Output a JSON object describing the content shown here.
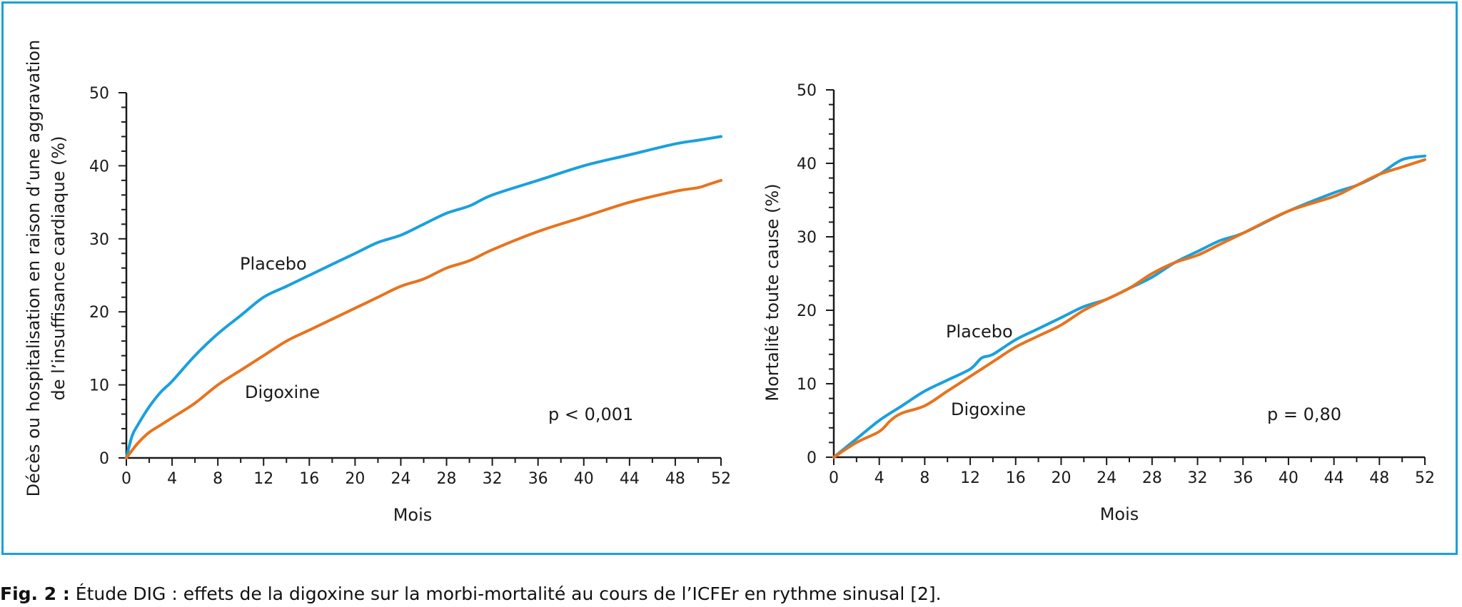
{
  "colors": {
    "frame": "#1aa0dd",
    "placebo": "#1aa0dd",
    "digoxine": "#e8731c"
  },
  "caption": {
    "label": "Fig. 2 :",
    "text": " Étude DIG : effets de la digoxine sur la morbi-mortalité au cours de l’ICFEr en rythme sinusal [2]."
  },
  "chart_data": [
    {
      "type": "line",
      "ylabel_line1": "Décès ou hospitalisation en raison d’une aggravation",
      "ylabel_line2": "de l’insuffisance cardiaque (%)",
      "xlabel": "Mois",
      "xlim": [
        0,
        52
      ],
      "ylim": [
        0,
        50
      ],
      "xticks": [
        0,
        4,
        8,
        12,
        16,
        20,
        24,
        28,
        32,
        36,
        40,
        44,
        48,
        52
      ],
      "yticks": [
        0,
        10,
        20,
        30,
        40,
        50
      ],
      "series": [
        {
          "name": "Placebo",
          "color": "#1aa0dd",
          "x": [
            0,
            0.5,
            1,
            2,
            3,
            4,
            6,
            8,
            10,
            12,
            14,
            16,
            18,
            20,
            22,
            24,
            26,
            28,
            30,
            32,
            36,
            40,
            44,
            48,
            50,
            52
          ],
          "y": [
            0,
            3,
            4.5,
            7,
            9,
            10.5,
            14,
            17,
            19.5,
            22,
            23.5,
            25,
            26.5,
            28,
            29.5,
            30.5,
            32,
            33.5,
            34.5,
            36,
            38,
            40,
            41.5,
            43,
            43.5,
            44
          ]
        },
        {
          "name": "Digoxine",
          "color": "#e8731c",
          "x": [
            0,
            1,
            2,
            3,
            4,
            6,
            8,
            10,
            12,
            14,
            16,
            18,
            20,
            22,
            24,
            26,
            28,
            30,
            32,
            36,
            40,
            44,
            48,
            50,
            51,
            52
          ],
          "y": [
            0,
            2,
            3.5,
            4.5,
            5.5,
            7.5,
            10,
            12,
            14,
            16,
            17.5,
            19,
            20.5,
            22,
            23.5,
            24.5,
            26,
            27,
            28.5,
            31,
            33,
            35,
            36.5,
            37,
            37.5,
            38
          ]
        }
      ],
      "annotations": {
        "placebo": "Placebo",
        "digoxine": "Digoxine",
        "pvalue": "p < 0,001"
      }
    },
    {
      "type": "line",
      "ylabel_line1": "Mortalité toute cause (%)",
      "xlabel": "Mois",
      "xlim": [
        0,
        52
      ],
      "ylim": [
        0,
        50
      ],
      "xticks": [
        0,
        4,
        8,
        12,
        16,
        20,
        24,
        28,
        32,
        36,
        40,
        44,
        48,
        52
      ],
      "yticks": [
        0,
        10,
        20,
        30,
        40,
        50
      ],
      "series": [
        {
          "name": "Placebo",
          "color": "#1aa0dd",
          "x": [
            0,
            2,
            4,
            6,
            8,
            10,
            12,
            13,
            14,
            16,
            18,
            20,
            22,
            24,
            26,
            28,
            30,
            32,
            34,
            36,
            40,
            44,
            46,
            48,
            50,
            52
          ],
          "y": [
            0,
            2.5,
            5,
            7,
            9,
            10.5,
            12,
            13.5,
            14,
            16,
            17.5,
            19,
            20.5,
            21.5,
            23,
            24.5,
            26.5,
            28,
            29.5,
            30.5,
            33.5,
            36,
            37,
            38.5,
            40.5,
            41
          ]
        },
        {
          "name": "Digoxine",
          "color": "#e8731c",
          "x": [
            0,
            2,
            4,
            5,
            6,
            8,
            10,
            12,
            14,
            16,
            18,
            20,
            22,
            24,
            26,
            28,
            30,
            32,
            34,
            36,
            40,
            44,
            46,
            48,
            50,
            52
          ],
          "y": [
            0,
            2,
            3.5,
            5,
            6,
            7,
            9,
            11,
            13,
            15,
            16.5,
            18,
            20,
            21.5,
            23,
            25,
            26.5,
            27.5,
            29,
            30.5,
            33.5,
            35.5,
            37,
            38.5,
            39.5,
            40.5
          ]
        }
      ],
      "annotations": {
        "placebo": "Placebo",
        "digoxine": "Digoxine",
        "pvalue": "p = 0,80"
      }
    }
  ]
}
